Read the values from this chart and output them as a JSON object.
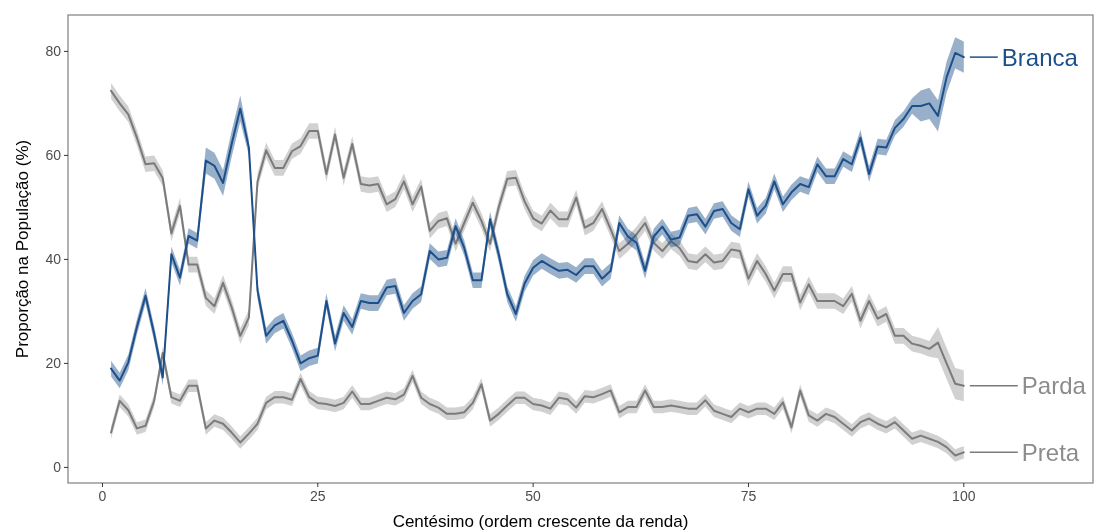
{
  "chart_data": {
    "type": "line",
    "xlabel": "Centésimo (ordem crescente da renda)",
    "ylabel": "Proporção na População (%)",
    "x": [
      1,
      2,
      3,
      4,
      5,
      6,
      7,
      8,
      9,
      10,
      11,
      12,
      13,
      14,
      15,
      16,
      17,
      18,
      19,
      20,
      21,
      22,
      23,
      24,
      25,
      26,
      27,
      28,
      29,
      30,
      31,
      32,
      33,
      34,
      35,
      36,
      37,
      38,
      39,
      40,
      41,
      42,
      43,
      44,
      45,
      46,
      47,
      48,
      49,
      50,
      51,
      52,
      53,
      54,
      55,
      56,
      57,
      58,
      59,
      60,
      61,
      62,
      63,
      64,
      65,
      66,
      67,
      68,
      69,
      70,
      71,
      72,
      73,
      74,
      75,
      76,
      77,
      78,
      79,
      80,
      81,
      82,
      83,
      84,
      85,
      86,
      87,
      88,
      89,
      90,
      91,
      92,
      93,
      94,
      95,
      96,
      97,
      98,
      99,
      100
    ],
    "xlim": [
      -4,
      115
    ],
    "xticks": [
      0,
      25,
      50,
      75,
      100
    ],
    "ylim": [
      -3,
      87
    ],
    "yticks": [
      0,
      20,
      40,
      60,
      80
    ],
    "grid": false,
    "legend": "right",
    "line_style": "solid",
    "marker": "none",
    "series": [
      {
        "name": "Branca",
        "color": "#1d4f8a",
        "values": [
          19,
          16.7,
          20.2,
          27,
          33,
          25.7,
          17.3,
          41,
          36.5,
          44.5,
          43.6,
          59,
          58,
          54.7,
          62.2,
          69,
          61.5,
          34,
          25.3,
          27.3,
          28.2,
          24.4,
          20,
          21,
          21.5,
          32,
          23.8,
          29.7,
          27,
          32,
          31.6,
          31.6,
          34.6,
          34.9,
          29.7,
          32,
          33.3,
          41.6,
          40,
          40.3,
          46.4,
          42.2,
          36,
          36,
          47.7,
          41,
          33.3,
          29.5,
          35.3,
          38.4,
          39.7,
          38.7,
          37.8,
          38,
          37,
          38.7,
          38.7,
          36.3,
          37.8,
          47,
          44.4,
          43.2,
          37.8,
          44.4,
          46.3,
          43.8,
          44.2,
          48.4,
          48.7,
          46.3,
          49.3,
          49.7,
          47,
          45.8,
          53.5,
          48.4,
          50.3,
          55,
          50.6,
          52.9,
          54.5,
          53.9,
          58.3,
          56,
          56,
          59.3,
          58.3,
          63.4,
          56.4,
          61.7,
          61.5,
          65.3,
          67,
          69.5,
          69.5,
          70,
          67.6,
          75,
          79.7,
          78.9
        ],
        "lower": [
          17.5,
          15.2,
          18.7,
          25.5,
          31.5,
          24.2,
          15.8,
          39.5,
          35,
          43,
          42.1,
          56.5,
          55.5,
          52.2,
          59.7,
          66.5,
          60,
          32.5,
          23.8,
          25.8,
          26.7,
          22.9,
          18.5,
          19.5,
          20,
          30.5,
          22.3,
          28.2,
          25.5,
          30.5,
          30.1,
          30.1,
          33.1,
          33.4,
          28.2,
          30.5,
          31.8,
          40.1,
          38.5,
          38.8,
          44.9,
          40.7,
          34.5,
          34.5,
          46.2,
          39.5,
          31.8,
          28,
          33.8,
          36.9,
          38.2,
          37.2,
          36.3,
          36.5,
          35.5,
          37.2,
          37.2,
          34.8,
          36.3,
          45.5,
          42.9,
          41.7,
          36.3,
          42.9,
          44.8,
          42.3,
          42.7,
          46.9,
          47.2,
          44.8,
          47.8,
          48.2,
          45.5,
          44.3,
          52,
          46.9,
          48.8,
          53.5,
          49.1,
          51.4,
          53,
          52.4,
          56.8,
          54.5,
          54.5,
          57.8,
          56.8,
          61.9,
          54.9,
          60.2,
          60,
          63.8,
          65.5,
          68,
          66.5,
          67,
          64.6,
          72,
          76.7,
          75.9
        ],
        "upper": [
          20.5,
          18.2,
          21.7,
          28.5,
          34.5,
          27.2,
          18.8,
          42.5,
          38,
          46,
          45.1,
          61.5,
          60.5,
          57.2,
          64.7,
          71.5,
          63,
          35.5,
          26.8,
          28.8,
          29.7,
          25.9,
          21.5,
          22.5,
          23,
          33.5,
          25.3,
          31.2,
          28.5,
          33.5,
          33.1,
          33.1,
          36.1,
          36.4,
          31.2,
          33.5,
          34.8,
          43.1,
          41.5,
          41.8,
          47.9,
          43.7,
          37.5,
          37.5,
          49.2,
          42.5,
          34.8,
          31,
          36.8,
          39.9,
          41.2,
          40.2,
          39.3,
          39.5,
          38.5,
          40.2,
          40.2,
          37.8,
          39.3,
          48.5,
          45.9,
          44.7,
          39.3,
          45.9,
          47.8,
          45.3,
          45.7,
          49.9,
          50.2,
          47.8,
          50.8,
          51.2,
          48.5,
          47.3,
          55,
          49.9,
          51.8,
          56.5,
          52.1,
          54.4,
          56,
          55.4,
          59.8,
          57.5,
          57.5,
          60.8,
          59.8,
          64.9,
          57.9,
          63.2,
          63,
          66.8,
          68.5,
          71,
          72.5,
          73,
          70.6,
          78,
          82.7,
          81.9
        ]
      },
      {
        "name": "Parda",
        "color": "#7a7a7a",
        "values": [
          72.4,
          70,
          67.9,
          63.4,
          58.3,
          58.5,
          55.6,
          45,
          50.3,
          39,
          39,
          32.6,
          31,
          35.5,
          30.8,
          25.3,
          28.8,
          55,
          61,
          57.6,
          57.6,
          60.8,
          61.8,
          64.7,
          64.7,
          56.4,
          64,
          55.7,
          62.2,
          54.5,
          54.2,
          54.5,
          50.6,
          51.6,
          55,
          50.6,
          54,
          45.5,
          47.4,
          47.9,
          43,
          47,
          50.9,
          47.4,
          43,
          50,
          55.5,
          55.7,
          51.2,
          47.9,
          46.9,
          49.4,
          47.7,
          47.7,
          51.9,
          46.1,
          47,
          49.7,
          45.8,
          41.6,
          43,
          44.8,
          47,
          43.2,
          41.6,
          43.5,
          42.2,
          39.7,
          39.4,
          41,
          39.4,
          39.7,
          41.9,
          41.6,
          36.3,
          39.7,
          37.2,
          34,
          37.2,
          37.2,
          31.7,
          35.2,
          32,
          32,
          32,
          31,
          33.4,
          28.2,
          32,
          28.6,
          29.5,
          25.3,
          25.3,
          23.8,
          23.4,
          22.8,
          24,
          20,
          16.1,
          15.7
        ],
        "lower": [
          70.9,
          68.5,
          66.4,
          61.9,
          56.8,
          57,
          54.1,
          43.5,
          48.8,
          37.5,
          37.5,
          31.1,
          29.5,
          34,
          29.3,
          23.8,
          27.3,
          53.5,
          59.5,
          56.1,
          56.1,
          59.3,
          60.3,
          63.2,
          63.2,
          54.9,
          62.5,
          54.2,
          60.7,
          53,
          52.7,
          53,
          49.1,
          50.1,
          53.5,
          49.1,
          52.5,
          44,
          45.9,
          46.4,
          41.5,
          45.5,
          49.4,
          45.9,
          41.5,
          48.5,
          54,
          54.2,
          49.7,
          46.4,
          45.4,
          47.9,
          46.2,
          46.2,
          50.4,
          44.6,
          45.5,
          48.2,
          44.3,
          40.1,
          41.5,
          43.3,
          45.5,
          41.7,
          40.1,
          42,
          40.7,
          38.2,
          37.9,
          39.5,
          37.9,
          38.2,
          40.4,
          40.1,
          34.8,
          38.2,
          35.7,
          32.5,
          35.7,
          35.7,
          30.2,
          33.7,
          30.5,
          30.5,
          30.5,
          29.5,
          31.9,
          26.7,
          30.5,
          27.1,
          28,
          23.8,
          23.8,
          22.3,
          21.9,
          21.3,
          21,
          17,
          13.1,
          12.7
        ],
        "upper": [
          73.9,
          71.5,
          69.4,
          64.9,
          59.8,
          60,
          57.1,
          46.5,
          51.8,
          40.5,
          40.5,
          34.1,
          32.5,
          37,
          32.3,
          26.8,
          30.3,
          56.5,
          62.5,
          59.1,
          59.1,
          62.3,
          63.3,
          66.2,
          66.2,
          57.9,
          65.5,
          57.2,
          63.7,
          56,
          55.7,
          56,
          52.1,
          53.1,
          56.5,
          52.1,
          55.5,
          47,
          48.9,
          49.4,
          44.5,
          48.5,
          52.4,
          48.9,
          44.5,
          51.5,
          57,
          57.2,
          52.7,
          49.4,
          48.4,
          50.9,
          49.2,
          49.2,
          53.4,
          47.6,
          48.5,
          51.2,
          47.3,
          43.1,
          44.5,
          46.3,
          48.5,
          44.7,
          43.1,
          45,
          43.7,
          41.2,
          40.9,
          42.5,
          40.9,
          41.2,
          43.4,
          43.1,
          37.8,
          41.2,
          38.7,
          35.5,
          38.7,
          38.7,
          33.2,
          36.7,
          33.5,
          33.5,
          33.5,
          32.5,
          34.9,
          29.7,
          33.5,
          30.1,
          31,
          26.8,
          26.8,
          25.3,
          24.9,
          24.3,
          27,
          23,
          19.1,
          18.7
        ]
      },
      {
        "name": "Preta",
        "color": "#7c7c7c",
        "values": [
          6.7,
          12.8,
          11,
          7.5,
          8,
          12.8,
          22,
          13.5,
          12.8,
          15.7,
          15.7,
          7.5,
          9,
          8.4,
          6.7,
          4.8,
          6.5,
          8.4,
          12.4,
          13.5,
          13.5,
          13,
          17,
          13.5,
          12.4,
          12.2,
          11.8,
          12.4,
          14.6,
          12.2,
          12.2,
          12.8,
          13.4,
          13.1,
          14,
          17.6,
          13.4,
          12.2,
          11.5,
          10.3,
          10.3,
          10.6,
          12.4,
          16,
          9,
          10.3,
          11.9,
          13.4,
          13.4,
          12.2,
          11.9,
          11.3,
          13.4,
          13.1,
          11.5,
          13.7,
          13.5,
          14.1,
          14.8,
          10.6,
          11.6,
          11.6,
          14.8,
          11.6,
          11.6,
          11.9,
          11.6,
          11.3,
          11.3,
          12.9,
          10.9,
          10.3,
          9.7,
          11.3,
          10.6,
          11.3,
          11.3,
          10.3,
          12.5,
          7.7,
          14.8,
          10,
          9,
          10.3,
          9.7,
          8.4,
          7.1,
          8.7,
          9.4,
          8.4,
          7.7,
          8.7,
          7.1,
          5.5,
          6.1,
          5.5,
          4.9,
          3.9,
          2.3,
          2.9
        ],
        "lower": [
          5.5,
          11.6,
          9.8,
          6.3,
          6.8,
          11.6,
          20.8,
          12.3,
          11.6,
          14.5,
          14.5,
          6.3,
          7.8,
          7.2,
          5.5,
          3.6,
          5.3,
          7.2,
          11.2,
          12.3,
          12.3,
          11.8,
          15.8,
          12.3,
          11.2,
          11,
          10.6,
          11.2,
          13.4,
          11,
          11,
          11.6,
          12.2,
          11.9,
          12.8,
          16.4,
          12.2,
          11,
          10.3,
          9.1,
          9.1,
          9.4,
          11.2,
          14.8,
          7.8,
          9.1,
          10.7,
          12.2,
          12.2,
          11,
          10.7,
          10.1,
          12.2,
          11.9,
          10.3,
          12.5,
          12.3,
          12.9,
          13.6,
          9.4,
          10.4,
          10.4,
          13.6,
          10.4,
          10.4,
          10.7,
          10.4,
          10.1,
          10.1,
          11.7,
          9.7,
          9.1,
          8.5,
          10.1,
          9.4,
          10.1,
          10.1,
          9.1,
          11.3,
          6.5,
          13.6,
          8.8,
          7.8,
          9.1,
          8.5,
          7.2,
          5.9,
          7.5,
          8.2,
          7.2,
          6.5,
          7.5,
          5.9,
          4.3,
          4.9,
          4.3,
          3.7,
          2.7,
          1.1,
          1.7
        ],
        "upper": [
          7.9,
          14,
          12.2,
          8.7,
          9.2,
          14,
          23.2,
          14.7,
          14,
          16.9,
          16.9,
          8.7,
          10.2,
          9.6,
          7.9,
          6,
          7.7,
          9.6,
          13.6,
          14.7,
          14.7,
          14.2,
          18.2,
          14.7,
          13.6,
          13.4,
          13,
          13.6,
          15.8,
          13.4,
          13.4,
          14,
          14.6,
          14.3,
          15.2,
          18.8,
          14.6,
          13.4,
          12.7,
          11.5,
          11.5,
          11.8,
          13.6,
          17.2,
          10.2,
          11.5,
          13.1,
          14.6,
          14.6,
          13.4,
          13.1,
          12.5,
          14.6,
          14.3,
          12.7,
          14.9,
          14.7,
          15.3,
          16,
          11.8,
          12.8,
          12.8,
          16,
          12.8,
          12.8,
          13.1,
          12.8,
          12.5,
          12.5,
          14.1,
          12.1,
          11.5,
          10.9,
          12.5,
          11.8,
          12.5,
          12.5,
          11.5,
          13.7,
          8.9,
          16,
          11.2,
          10.2,
          11.5,
          10.9,
          9.6,
          8.3,
          9.9,
          10.6,
          9.6,
          8.9,
          9.9,
          8.3,
          6.7,
          7.3,
          6.7,
          6.1,
          5.1,
          3.5,
          4.1
        ]
      }
    ]
  }
}
